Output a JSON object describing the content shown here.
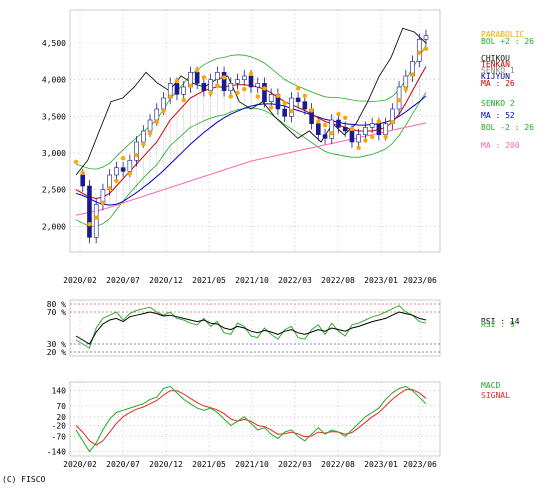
{
  "copyright": "(C) FISCO",
  "colors": {
    "price_up": "#ffffff",
    "price_down": "#1a1a8c",
    "parabolic": "#ffa500",
    "bol_band": "#22aa22",
    "chikou": "#111111",
    "tenkan": "#cc0000",
    "kijun": "#000099",
    "ma26": "#cc0000",
    "ma52": "#0000cc",
    "ma200": "#ff66aa",
    "senko": "#888888",
    "rsi14": "#000000",
    "rsi9": "#33aa33",
    "macd": "#22aa22",
    "signal": "#ee2222",
    "grid": "#aaaaaa"
  },
  "chart_data": [
    {
      "type": "line",
      "panel": "price",
      "x_ticks": [
        "2020/02",
        "2020/07",
        "2020/12",
        "2021/05",
        "2021/10",
        "2022/03",
        "2022/08",
        "2023/01",
        "2023/06"
      ],
      "y_ticks": [
        2000,
        2500,
        3000,
        3500,
        4000,
        4500
      ],
      "y_tick_labels": [
        "2,000",
        "2,500",
        "3,000",
        "3,500",
        "4,000",
        "4,500"
      ],
      "ylim": [
        1650,
        4950
      ],
      "legend": [
        {
          "label": "PARABOLIC",
          "color": "#ffa500"
        },
        {
          "label": "BOL +2 : 26",
          "color": "#22aa22"
        },
        {
          "label": "CHIKOU",
          "color": "#111111"
        },
        {
          "label": "TENKAN",
          "color": "#cc0000"
        },
        {
          "label": "SENKO 1",
          "color": "#888888"
        },
        {
          "label": "KIJYUN",
          "color": "#000099"
        },
        {
          "label": "MA : 26",
          "color": "#cc0000"
        },
        {
          "label": "SENKO 2",
          "color": "#22aa22"
        },
        {
          "label": "MA : 52",
          "color": "#0000cc"
        },
        {
          "label": "BOL -2 : 26",
          "color": "#22aa22"
        },
        {
          "label": "MA : 200",
          "color": "#ff66aa"
        }
      ],
      "price": [
        2700,
        2550,
        1850,
        2300,
        2500,
        2700,
        2800,
        2750,
        2900,
        3150,
        3300,
        3450,
        3600,
        3750,
        3950,
        3800,
        3900,
        4100,
        3950,
        3850,
        4000,
        4100,
        3850,
        3950,
        4000,
        4050,
        3900,
        3950,
        3700,
        3800,
        3600,
        3500,
        3750,
        3700,
        3600,
        3400,
        3250,
        3200,
        3450,
        3350,
        3300,
        3150,
        3250,
        3350,
        3400,
        3250,
        3400,
        3600,
        3900,
        4050,
        4250,
        4550,
        4600
      ],
      "ma26": [
        2500,
        2450,
        2400,
        2380,
        2400,
        2450,
        2550,
        2650,
        2750,
        2850,
        2950,
        3050,
        3150,
        3300,
        3450,
        3550,
        3650,
        3750,
        3800,
        3850,
        3880,
        3900,
        3900,
        3920,
        3930,
        3930,
        3920,
        3900,
        3870,
        3820,
        3760,
        3700,
        3660,
        3620,
        3580,
        3530,
        3480,
        3430,
        3400,
        3380,
        3350,
        3320,
        3300,
        3300,
        3300,
        3320,
        3350,
        3420,
        3530,
        3680,
        3850,
        4020,
        4180
      ],
      "ma52": [
        2450,
        2420,
        2380,
        2330,
        2300,
        2290,
        2300,
        2340,
        2400,
        2460,
        2530,
        2600,
        2680,
        2760,
        2850,
        2940,
        3030,
        3120,
        3200,
        3280,
        3350,
        3420,
        3480,
        3530,
        3570,
        3610,
        3640,
        3660,
        3670,
        3670,
        3660,
        3640,
        3610,
        3580,
        3550,
        3520,
        3490,
        3460,
        3440,
        3420,
        3400,
        3390,
        3380,
        3380,
        3390,
        3400,
        3420,
        3450,
        3500,
        3560,
        3630,
        3700,
        3780
      ],
      "ma200": [
        2150,
        2170,
        2190,
        2210,
        2230,
        2260,
        2290,
        2320,
        2350,
        2380,
        2410,
        2440,
        2470,
        2500,
        2530,
        2560,
        2590,
        2620,
        2650,
        2680,
        2710,
        2740,
        2770,
        2800,
        2830,
        2860,
        2890,
        2910,
        2930,
        2950,
        2970,
        2990,
        3010,
        3030,
        3050,
        3070,
        3090,
        3110,
        3130,
        3150,
        3170,
        3190,
        3210,
        3230,
        3250,
        3270,
        3290,
        3310,
        3330,
        3350,
        3370,
        3390,
        3410
      ],
      "chikou": [
        2700,
        2900,
        3300,
        3700,
        3750,
        3900,
        4100,
        3950,
        3850,
        4050,
        3950,
        3900,
        4000,
        4050,
        3700,
        3600,
        3700,
        3500,
        3350,
        3200,
        3300,
        3150,
        3400,
        3250,
        3400,
        3700,
        4050,
        4300,
        4700,
        4650,
        4500
      ]
    },
    {
      "type": "line",
      "panel": "rsi",
      "y_ticks": [
        20,
        30,
        70,
        80
      ],
      "y_tick_labels": [
        "20 %",
        "30 %",
        "70 %",
        "80 %"
      ],
      "ylim": [
        15,
        85
      ],
      "legend": [
        {
          "label": "RSI : 14",
          "color": "#000000"
        },
        {
          "label": "RSI : 9",
          "color": "#33aa33"
        }
      ],
      "rsi14": [
        40,
        35,
        30,
        45,
        55,
        60,
        62,
        58,
        64,
        66,
        68,
        70,
        68,
        65,
        66,
        64,
        62,
        60,
        58,
        60,
        56,
        55,
        50,
        48,
        52,
        50,
        46,
        44,
        47,
        45,
        42,
        46,
        48,
        44,
        42,
        45,
        48,
        46,
        50,
        48,
        46,
        50,
        52,
        55,
        58,
        60,
        62,
        66,
        70,
        68,
        66,
        62,
        60
      ],
      "rsi9": [
        35,
        30,
        25,
        50,
        62,
        66,
        70,
        60,
        68,
        72,
        74,
        76,
        70,
        66,
        70,
        62,
        60,
        56,
        54,
        62,
        52,
        58,
        44,
        42,
        56,
        52,
        40,
        38,
        50,
        42,
        36,
        48,
        52,
        38,
        36,
        48,
        54,
        42,
        56,
        46,
        40,
        54,
        56,
        60,
        64,
        66,
        70,
        74,
        78,
        70,
        66,
        58,
        56
      ]
    },
    {
      "type": "line",
      "panel": "macd",
      "y_ticks": [
        -140,
        -70,
        -20,
        20,
        70,
        140
      ],
      "y_tick_labels": [
        "-140",
        "-70",
        "-20",
        "20",
        "70",
        "140"
      ],
      "ylim": [
        -160,
        180
      ],
      "legend": [
        {
          "label": "MACD",
          "color": "#22aa22"
        },
        {
          "label": "SIGNAL",
          "color": "#ee2222"
        }
      ],
      "macd": [
        -40,
        -90,
        -140,
        -100,
        -40,
        10,
        40,
        50,
        60,
        70,
        80,
        100,
        110,
        150,
        160,
        130,
        100,
        80,
        60,
        50,
        60,
        40,
        10,
        -20,
        0,
        20,
        -10,
        -40,
        -30,
        -60,
        -80,
        -50,
        -40,
        -70,
        -90,
        -60,
        -30,
        -60,
        -40,
        -50,
        -70,
        -40,
        -10,
        20,
        40,
        60,
        100,
        130,
        150,
        160,
        140,
        110,
        80
      ],
      "signal": [
        -20,
        -50,
        -90,
        -110,
        -90,
        -50,
        -10,
        20,
        40,
        55,
        65,
        80,
        95,
        120,
        140,
        140,
        125,
        105,
        85,
        70,
        62,
        52,
        35,
        10,
        0,
        8,
        0,
        -20,
        -25,
        -40,
        -60,
        -58,
        -50,
        -58,
        -72,
        -68,
        -50,
        -55,
        -48,
        -50,
        -60,
        -52,
        -30,
        -5,
        20,
        40,
        70,
        100,
        125,
        145,
        145,
        130,
        105
      ]
    }
  ]
}
